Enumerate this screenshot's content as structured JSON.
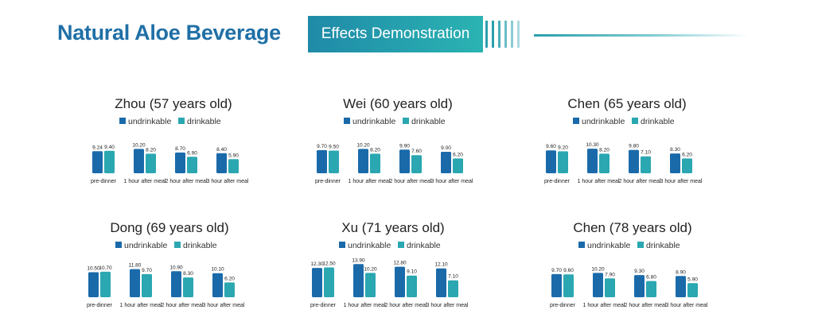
{
  "header": {
    "title": "Natural Aloe Beverage",
    "subtitle": "Effects Demonstration"
  },
  "colors": {
    "title": "#1f6fa6",
    "undrinkable": "#1a6aaa",
    "drinkable": "#2aa7b1",
    "accent": "#2a9fae"
  },
  "legend": [
    "undrinkable",
    "drinkable"
  ],
  "chart_data": [
    {
      "type": "bar",
      "title": "Zhou (57 years old)",
      "categories": [
        "pre-dinner",
        "1 hour after meal",
        "2 hour after meal",
        "3 hour after meal"
      ],
      "series": [
        {
          "name": "undrinkable",
          "values": [
            9.24,
            10.2,
            8.7,
            8.4
          ],
          "labels": [
            "9.24",
            "10.20",
            "8.70",
            "8.40"
          ]
        },
        {
          "name": "drinkable",
          "values": [
            9.4,
            8.2,
            6.9,
            5.9
          ],
          "labels": [
            "9.40",
            "8.20",
            "6.90",
            "5.90"
          ]
        }
      ]
    },
    {
      "type": "bar",
      "title": "Wei (60 years old)",
      "categories": [
        "pre-dinner",
        "1 hour after meal",
        "2 hour after meal",
        "3 hour after meal"
      ],
      "series": [
        {
          "name": "undrinkable",
          "values": [
            9.7,
            10.2,
            9.9,
            9.0
          ],
          "labels": [
            "9.70",
            "10.20",
            "9.90",
            "9.00"
          ]
        },
        {
          "name": "drinkable",
          "values": [
            9.5,
            8.2,
            7.6,
            6.2
          ],
          "labels": [
            "9.50",
            "8.20",
            "7.60",
            "6.20"
          ]
        }
      ]
    },
    {
      "type": "bar",
      "title": "Chen (65 years old)",
      "categories": [
        "pre-dinner",
        "1 hour after meal",
        "2 hour after meal",
        "3 hour after meal"
      ],
      "series": [
        {
          "name": "undrinkable",
          "values": [
            9.6,
            10.3,
            9.8,
            8.3
          ],
          "labels": [
            "9.60",
            "10.30",
            "9.80",
            "8.30"
          ]
        },
        {
          "name": "drinkable",
          "values": [
            9.2,
            8.2,
            7.1,
            6.2
          ],
          "labels": [
            "9.20",
            "8.20",
            "7.10",
            "6.20"
          ]
        }
      ]
    },
    {
      "type": "bar",
      "title": "Dong (69 years old)",
      "categories": [
        "pre-dinner",
        "1 hour after meal",
        "2 hour after meal",
        "3 hour after meal"
      ],
      "series": [
        {
          "name": "undrinkable",
          "values": [
            10.5,
            11.8,
            10.9,
            10.1
          ],
          "labels": [
            "10.50",
            "11.80",
            "10.90",
            "10.10"
          ]
        },
        {
          "name": "drinkable",
          "values": [
            10.7,
            9.7,
            8.3,
            6.2
          ],
          "labels": [
            "10.70",
            "9.70",
            "8.30",
            "6.20"
          ]
        }
      ]
    },
    {
      "type": "bar",
      "title": "Xu (71 years old)",
      "categories": [
        "pre-dinner",
        "1 hour after meal",
        "2 hour after meal",
        "3 hour after meal"
      ],
      "series": [
        {
          "name": "undrinkable",
          "values": [
            12.3,
            13.9,
            12.8,
            12.1
          ],
          "labels": [
            "12.30",
            "13.90",
            "12.80",
            "12.10"
          ]
        },
        {
          "name": "drinkable",
          "values": [
            12.5,
            10.2,
            9.1,
            7.1
          ],
          "labels": [
            "12.50",
            "10.20",
            "9.10",
            "7.10"
          ]
        }
      ]
    },
    {
      "type": "bar",
      "title": "Chen (78 years old)",
      "categories": [
        "pre-dinner",
        "1 hour after meal",
        "2 hour after meal",
        "3 hour after meal"
      ],
      "series": [
        {
          "name": "undrinkable",
          "values": [
            9.7,
            10.2,
            9.3,
            8.9
          ],
          "labels": [
            "9.70",
            "10.20",
            "9.30",
            "8.90"
          ]
        },
        {
          "name": "drinkable",
          "values": [
            9.6,
            7.9,
            6.8,
            5.9
          ],
          "labels": [
            "9.60",
            "7.90",
            "6.80",
            "5.90"
          ]
        }
      ]
    }
  ]
}
